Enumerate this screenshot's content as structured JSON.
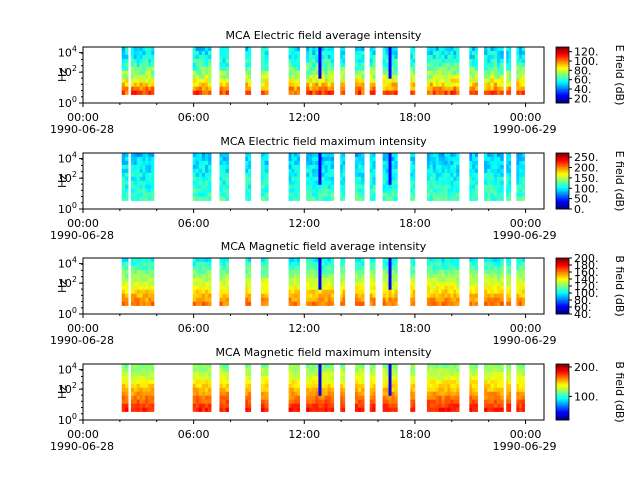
{
  "chart_data": [
    {
      "type": "heatmap",
      "title": "MCA  Electric field average intensity",
      "ylabel": "Hz",
      "yscale": "log",
      "ytick_labels": [
        [
          "10",
          "0"
        ],
        [
          "10",
          "2"
        ],
        [
          "10",
          "4"
        ]
      ],
      "xtick_labels": [
        "00:00",
        "06:00",
        "12:00",
        "18:00",
        "00:00"
      ],
      "x_start_date": "1990-06-28",
      "x_end_date": "1990-06-29",
      "colorbar_label": "E field (dB)",
      "colorbar_range": [
        10,
        130
      ],
      "colorbar_ticks": [
        "20.",
        "40.",
        "60.",
        "80.",
        "100.",
        "120."
      ],
      "colormap": "jet"
    },
    {
      "type": "heatmap",
      "title": "MCA  Electric field maximum intensity",
      "ylabel": "Hz",
      "yscale": "log",
      "ytick_labels": [
        [
          "10",
          "0"
        ],
        [
          "10",
          "2"
        ],
        [
          "10",
          "4"
        ]
      ],
      "xtick_labels": [
        "00:00",
        "06:00",
        "12:00",
        "18:00",
        "00:00"
      ],
      "x_start_date": "1990-06-28",
      "x_end_date": "1990-06-29",
      "colorbar_label": "E field (dB)",
      "colorbar_range": [
        0,
        270
      ],
      "colorbar_ticks": [
        "0.",
        "50.",
        "100.",
        "150.",
        "200.",
        "250."
      ],
      "colormap": "jet"
    },
    {
      "type": "heatmap",
      "title": "MCA  Magnetic field average intensity",
      "ylabel": "Hz",
      "yscale": "log",
      "ytick_labels": [
        [
          "10",
          "0"
        ],
        [
          "10",
          "2"
        ],
        [
          "10",
          "4"
        ]
      ],
      "xtick_labels": [
        "00:00",
        "06:00",
        "12:00",
        "18:00",
        "00:00"
      ],
      "x_start_date": "1990-06-28",
      "x_end_date": "1990-06-29",
      "colorbar_label": "B field (dB)",
      "colorbar_range": [
        40,
        200
      ],
      "colorbar_ticks": [
        "40.",
        "60.",
        "80.",
        "100.",
        "120.",
        "140.",
        "160.",
        "180.",
        "200."
      ],
      "colormap": "jet"
    },
    {
      "type": "heatmap",
      "title": "MCA  Magnetic field maximum intensity",
      "ylabel": "Hz",
      "yscale": "log",
      "ytick_labels": [
        [
          "10",
          "0"
        ],
        [
          "10",
          "2"
        ],
        [
          "10",
          "4"
        ]
      ],
      "xtick_labels": [
        "00:00",
        "06:00",
        "12:00",
        "18:00",
        "00:00"
      ],
      "x_start_date": "1990-06-28",
      "x_end_date": "1990-06-29",
      "colorbar_label": "B field (dB)",
      "colorbar_range": [
        20,
        210
      ],
      "colorbar_ticks": [
        "100.",
        "200."
      ],
      "colormap": "jet"
    }
  ]
}
